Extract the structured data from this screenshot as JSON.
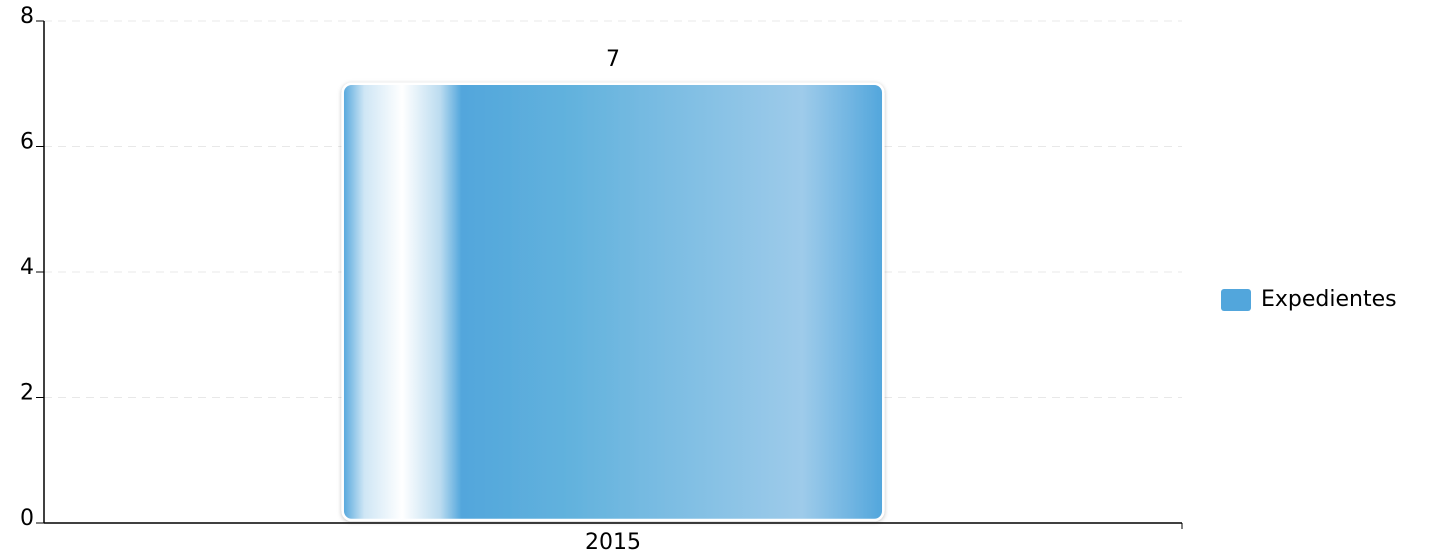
{
  "chart_data": {
    "type": "bar",
    "categories": [
      "2015"
    ],
    "series": [
      {
        "name": "Expedientes",
        "color": "#52a6dc",
        "values": [
          7
        ]
      }
    ],
    "ylim": [
      0,
      8
    ],
    "yticks": [
      0,
      2,
      4,
      6,
      8
    ],
    "grid": true,
    "legend": "right"
  }
}
